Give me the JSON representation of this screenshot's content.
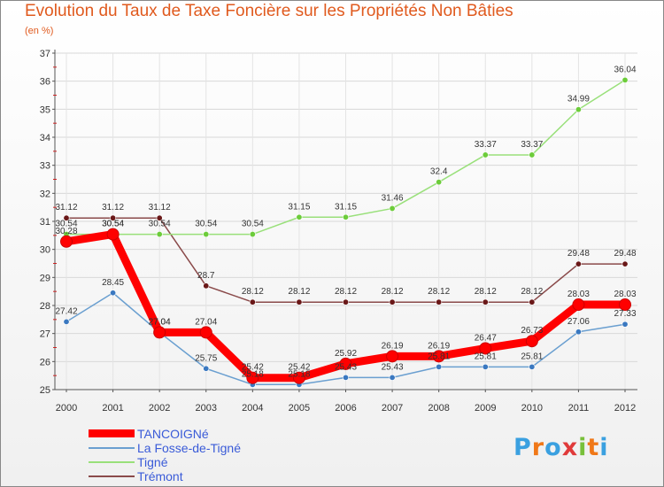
{
  "chart_data": {
    "type": "line",
    "title": "Evolution du Taux de Taxe Foncière sur les Propriétés Non Bâties",
    "subtitle": "(en %)",
    "xlabel": "",
    "ylabel": "(en %)",
    "categories": [
      "2000",
      "2001",
      "2002",
      "2003",
      "2004",
      "2005",
      "2006",
      "2007",
      "2008",
      "2009",
      "2010",
      "2011",
      "2012"
    ],
    "ylim": [
      25,
      37
    ],
    "yticks": [
      "25",
      "26",
      "27",
      "28",
      "29",
      "30",
      "31",
      "32",
      "33",
      "34",
      "35",
      "36",
      "37"
    ],
    "series": [
      {
        "name": "TANCOIGNé",
        "color": "#ff0000",
        "marker_color": "#ff0000",
        "values": [
          30.28,
          30.54,
          27.04,
          27.04,
          25.42,
          25.42,
          25.92,
          26.19,
          26.19,
          26.47,
          26.73,
          28.03,
          28.03
        ],
        "labels": [
          "30.28",
          "30.54",
          "27.04",
          "27.04",
          "25.42",
          "25.42",
          "25.92",
          "26.19",
          "26.19",
          "26.47",
          "26.73",
          "28.03",
          "28.03"
        ]
      },
      {
        "name": "La Fosse-de-Tigné",
        "color": "#6a9fd0",
        "marker_color": "#3a78c0",
        "values": [
          27.42,
          28.45,
          27.04,
          25.75,
          25.18,
          25.18,
          25.43,
          25.43,
          25.81,
          25.81,
          25.81,
          27.06,
          27.33
        ],
        "labels": [
          "27.42",
          "28.45",
          "27.04",
          "25.75",
          "25.18",
          "25.18",
          "25.43",
          "25.43",
          "25.81",
          "25.81",
          "25.81",
          "27.06",
          "27.33"
        ]
      },
      {
        "name": "Tigné",
        "color": "#99e07a",
        "marker_color": "#6ccc3a",
        "values": [
          30.54,
          30.54,
          30.54,
          30.54,
          30.54,
          31.15,
          31.15,
          31.46,
          32.4,
          33.37,
          33.37,
          34.99,
          36.04
        ],
        "labels": [
          "30.54",
          "30.54",
          "30.54",
          "30.54",
          "30.54",
          "31.15",
          "31.15",
          "31.46",
          "32.4",
          "33.37",
          "33.37",
          "34.99",
          "36.04"
        ]
      },
      {
        "name": "Trémont",
        "color": "#8a4a4a",
        "marker_color": "#6a1818",
        "values": [
          31.12,
          31.12,
          31.12,
          28.7,
          28.12,
          28.12,
          28.12,
          28.12,
          28.12,
          28.12,
          28.12,
          29.48,
          29.48
        ],
        "labels": [
          "31.12",
          "31.12",
          "31.12",
          "28.7",
          "28.12",
          "28.12",
          "28.12",
          "28.12",
          "28.12",
          "28.12",
          "28.12",
          "29.48",
          "29.48"
        ]
      }
    ],
    "legend": "bottom-left",
    "grid": true
  },
  "branding": {
    "letters": [
      "P",
      "r",
      "o",
      "x",
      "i",
      "t",
      "i"
    ],
    "colors": [
      "#3aa0e0",
      "#f07818",
      "#3aa0e0",
      "#e03a3a",
      "#78c03a",
      "#f07818",
      "#3aa0e0"
    ]
  }
}
